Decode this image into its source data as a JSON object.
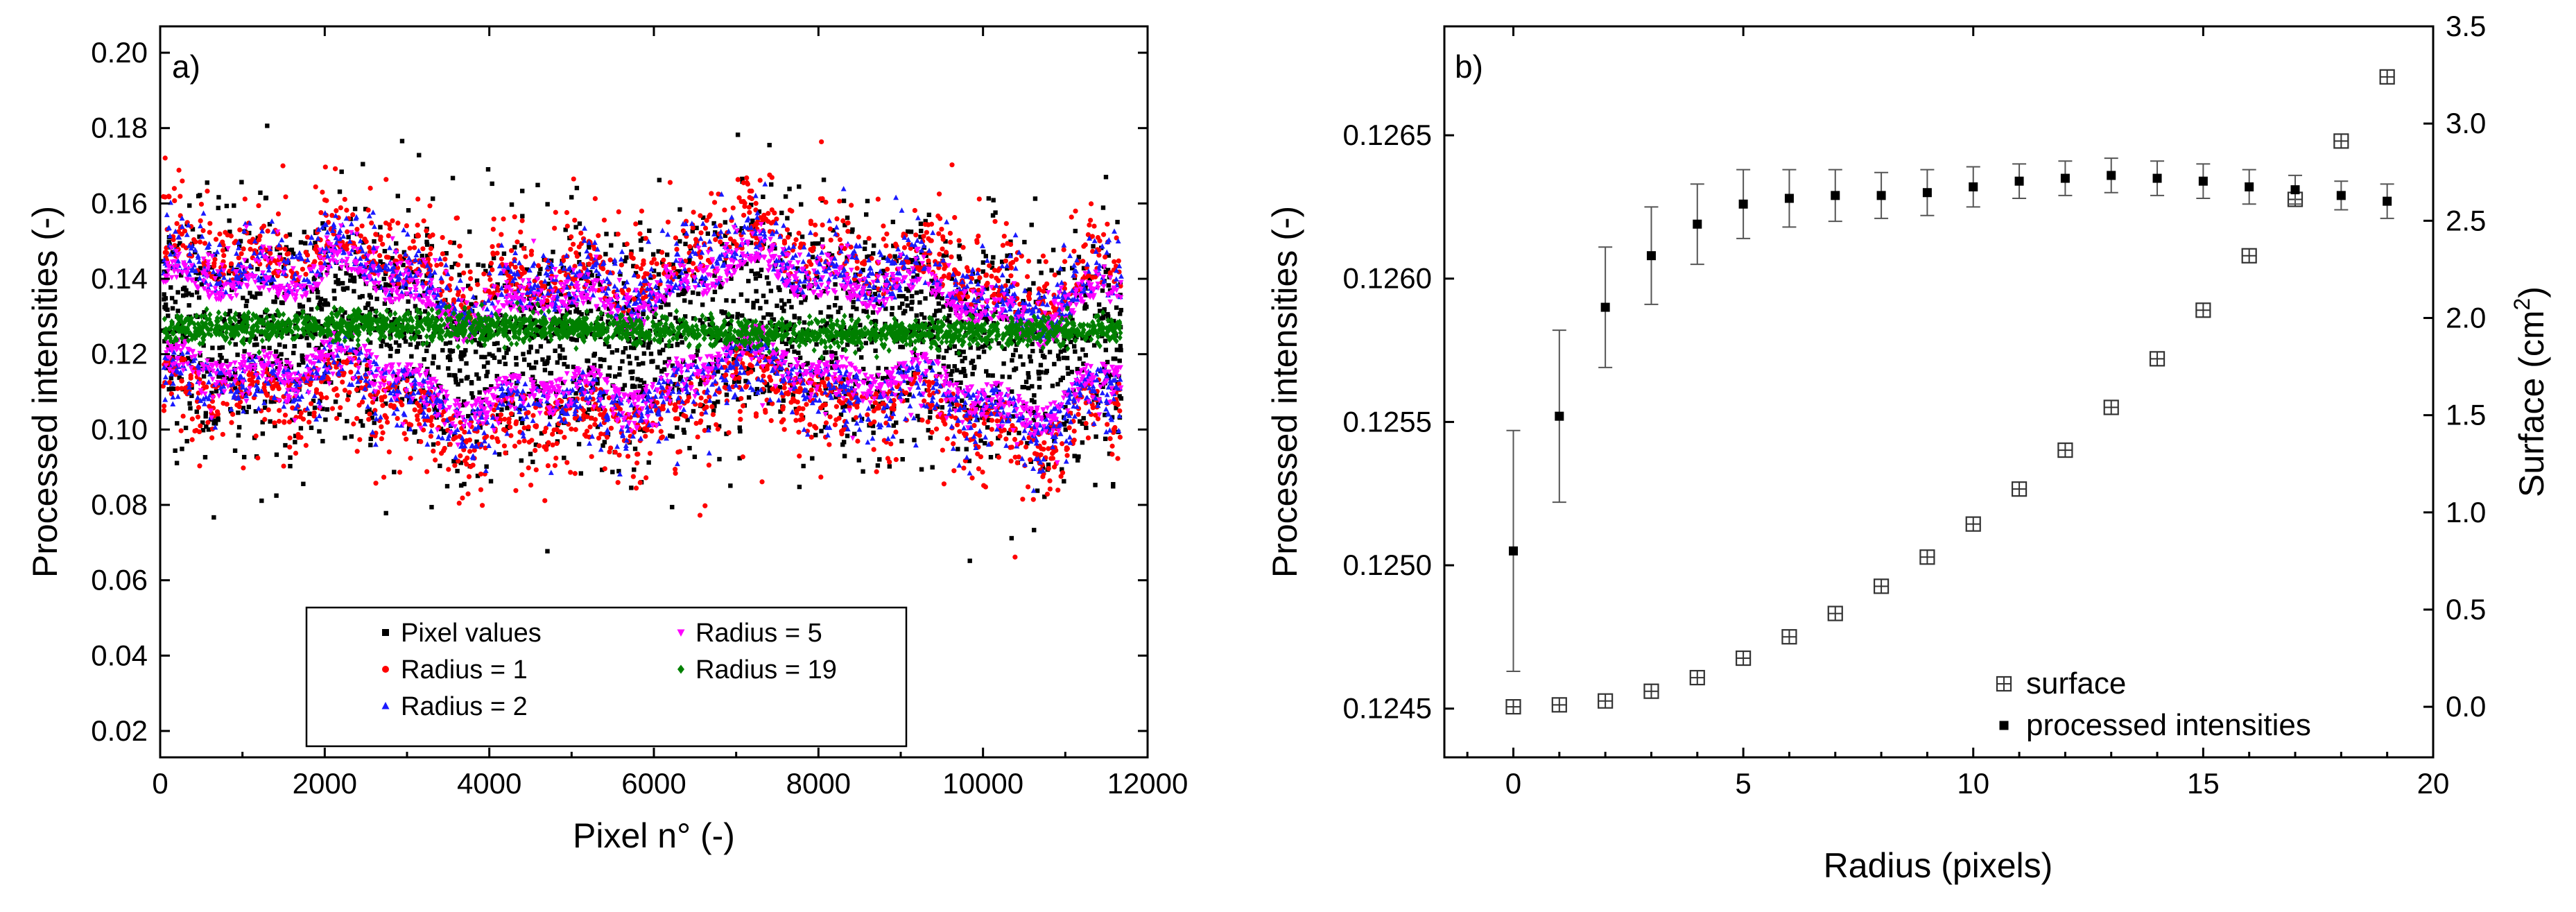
{
  "chart_data": [
    {
      "panel": "a",
      "type": "scatter",
      "panel_label": "a)",
      "xlabel": "Pixel n° (-)",
      "ylabel": "Processed intensities (-)",
      "xlim": [
        0,
        12000
      ],
      "ylim": [
        0.013,
        0.207
      ],
      "xticks": [
        0,
        2000,
        4000,
        6000,
        8000,
        10000,
        12000
      ],
      "yticks": [
        0.02,
        0.04,
        0.06,
        0.08,
        0.1,
        0.12,
        0.14,
        0.16,
        0.18,
        0.2
      ],
      "ytick_labels": [
        "0.02",
        "0.04",
        "0.06",
        "0.08",
        "0.10",
        "0.12",
        "0.14",
        "0.16",
        "0.18",
        "0.20"
      ],
      "legend_position": "bottom-center",
      "series": [
        {
          "name": "Pixel values",
          "color": "#000000",
          "marker": "square",
          "mean": 0.125,
          "spread": 0.026,
          "n_points": 2400
        },
        {
          "name": "Radius = 1",
          "color": "#ff0000",
          "marker": "circle",
          "mean": 0.125,
          "spread": 0.018,
          "n_points": 2200
        },
        {
          "name": "Radius = 2",
          "color": "#1a1aff",
          "marker": "triangle",
          "mean": 0.125,
          "spread": 0.014,
          "n_points": 2200
        },
        {
          "name": "Radius = 5",
          "color": "#ff00ff",
          "marker": "triangle-down",
          "mean": 0.125,
          "spread": 0.009,
          "n_points": 2200
        },
        {
          "name": "Radius = 19",
          "color": "#008000",
          "marker": "diamond",
          "mean": 0.1265,
          "spread": 0.003,
          "n_points": 2200
        }
      ],
      "legend_columns": [
        [
          "Pixel values",
          "Radius = 1",
          "Radius = 2"
        ],
        [
          "Radius = 5",
          "Radius = 19"
        ]
      ]
    },
    {
      "panel": "b",
      "type": "scatter",
      "panel_label": "b)",
      "xlabel": "Radius (pixels)",
      "ylabel": "Processed intensities (-)",
      "y2label_main": "Surface (cm",
      "y2label_sup": "2",
      "y2label_end": ")",
      "xlim": [
        -1.5,
        20
      ],
      "ylim": [
        0.12433,
        0.12688
      ],
      "y2lim": [
        -0.26,
        3.5
      ],
      "xticks": [
        0,
        5,
        10,
        15,
        20
      ],
      "yticks": [
        0.1245,
        0.125,
        0.1255,
        0.126,
        0.1265
      ],
      "ytick_labels": [
        "0.1245",
        "0.1250",
        "0.1255",
        "0.1260",
        "0.1265"
      ],
      "y2ticks": [
        0.0,
        0.5,
        1.0,
        1.5,
        2.0,
        2.5,
        3.0,
        3.5
      ],
      "y2tick_labels": [
        "0.0",
        "0.5",
        "1.0",
        "1.5",
        "2.0",
        "2.5",
        "3.0",
        "3.5"
      ],
      "legend_position": "bottom-right",
      "series": [
        {
          "name": "surface",
          "axis": "right",
          "marker": "boxed-plus",
          "x": [
            0,
            1,
            2,
            3,
            4,
            5,
            6,
            7,
            8,
            9,
            10,
            11,
            12,
            13,
            14,
            15,
            16,
            17,
            18,
            19
          ],
          "y": [
            0.0,
            0.01,
            0.03,
            0.08,
            0.15,
            0.25,
            0.36,
            0.48,
            0.62,
            0.77,
            0.94,
            1.12,
            1.32,
            1.54,
            1.79,
            2.04,
            2.32,
            2.61,
            2.91,
            3.24
          ]
        },
        {
          "name": "processed intensities",
          "axis": "left",
          "marker": "square",
          "x": [
            0,
            1,
            2,
            3,
            4,
            5,
            6,
            7,
            8,
            9,
            10,
            11,
            12,
            13,
            14,
            15,
            16,
            17,
            18,
            19
          ],
          "y": [
            0.12505,
            0.12552,
            0.1259,
            0.12608,
            0.12619,
            0.12626,
            0.12628,
            0.12629,
            0.12629,
            0.1263,
            0.12632,
            0.12634,
            0.12635,
            0.12636,
            0.12635,
            0.12634,
            0.12632,
            0.12631,
            0.12629,
            0.12627
          ],
          "err": [
            0.00042,
            0.0003,
            0.00021,
            0.00017,
            0.00014,
            0.00012,
            0.0001,
            9e-05,
            8e-05,
            8e-05,
            7e-05,
            6e-05,
            6e-05,
            6e-05,
            6e-05,
            6e-05,
            6e-05,
            5e-05,
            5e-05,
            6e-05
          ]
        }
      ]
    }
  ]
}
